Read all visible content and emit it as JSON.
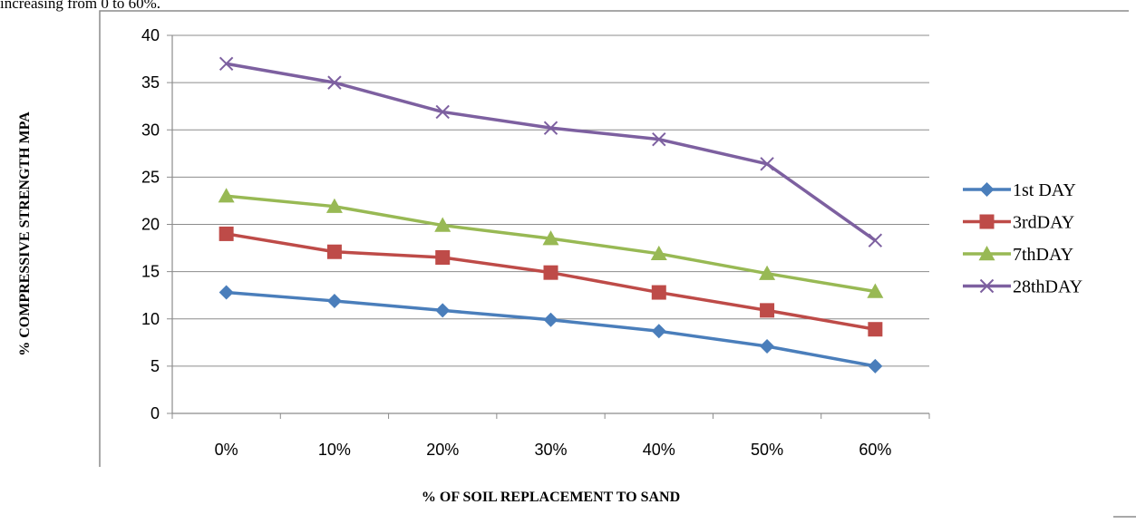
{
  "page": {
    "top_text": "increasing from 0 to 60%."
  },
  "chart_data": {
    "type": "line",
    "categories": [
      "0%",
      "10%",
      "20%",
      "30%",
      "40%",
      "50%",
      "60%"
    ],
    "series": [
      {
        "name": "1st DAY",
        "values": [
          12.8,
          11.9,
          10.9,
          9.9,
          8.7,
          7.1,
          5.0
        ],
        "color": "#4a7ebb",
        "marker": "diamond"
      },
      {
        "name": "3rdDAY",
        "values": [
          19.0,
          17.1,
          16.5,
          14.9,
          12.8,
          10.9,
          8.9
        ],
        "color": "#be4b48",
        "marker": "square"
      },
      {
        "name": "7thDAY",
        "values": [
          23.0,
          21.9,
          19.9,
          18.5,
          16.9,
          14.8,
          12.9
        ],
        "color": "#98b954",
        "marker": "triangle"
      },
      {
        "name": "28thDAY",
        "values": [
          37.0,
          35.0,
          31.9,
          30.2,
          29.0,
          26.4,
          18.3
        ],
        "color": "#7d60a0",
        "marker": "x"
      }
    ],
    "ylabel": "% COMPRESSIVE STRENGTH  MPA",
    "xlabel": "% OF SOIL REPLACEMENT TO SAND",
    "ylim": [
      0,
      40
    ],
    "yticks": [
      "0",
      "5",
      "10",
      "15",
      "20",
      "25",
      "30",
      "35",
      "40"
    ],
    "grid": true,
    "legend": "right"
  }
}
